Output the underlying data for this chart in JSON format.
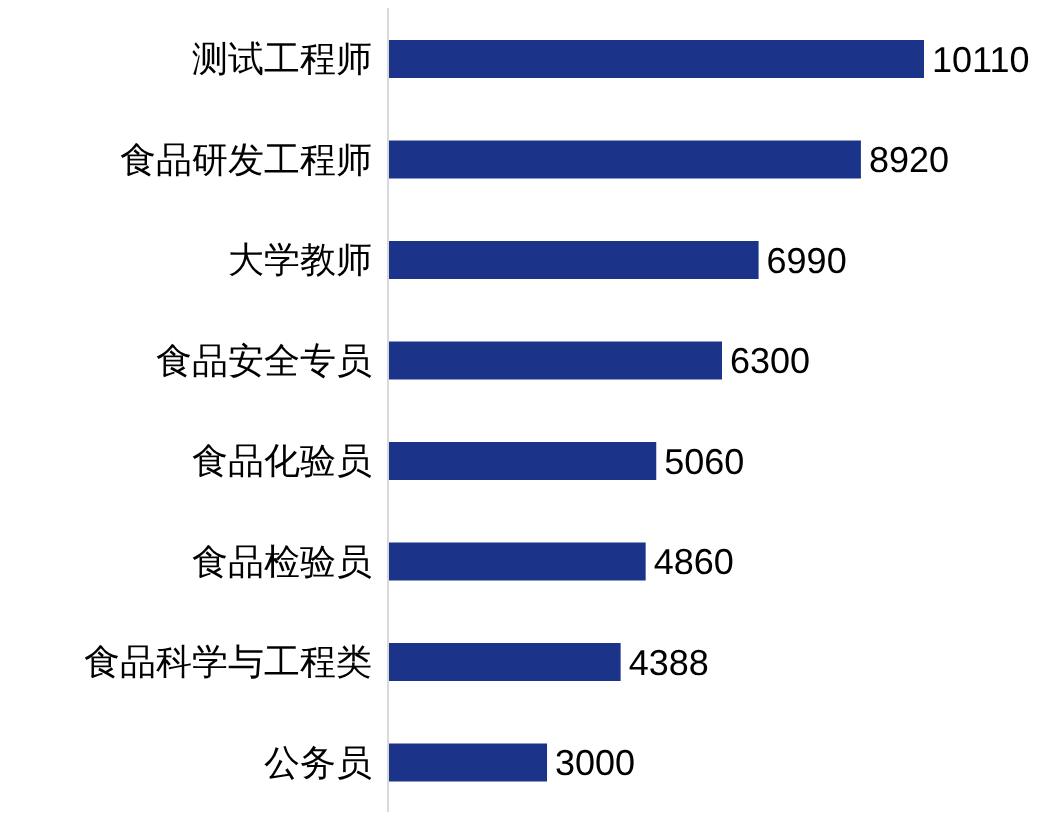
{
  "chart_data": {
    "type": "bar",
    "orientation": "horizontal",
    "categories": [
      "测试工程师",
      "食品研发工程师",
      "大学教师",
      "食品安全专员",
      "食品化验员",
      "食品检验员",
      "食品科学与工程类",
      "公务员"
    ],
    "values": [
      10110,
      8920,
      6990,
      6300,
      5060,
      4860,
      4388,
      3000
    ],
    "color": "#1b348a",
    "value_labels": [
      "10110",
      "8920",
      "6990",
      "6300",
      "5060",
      "4860",
      "4388",
      "3000"
    ],
    "grid": false,
    "legend": false
  }
}
